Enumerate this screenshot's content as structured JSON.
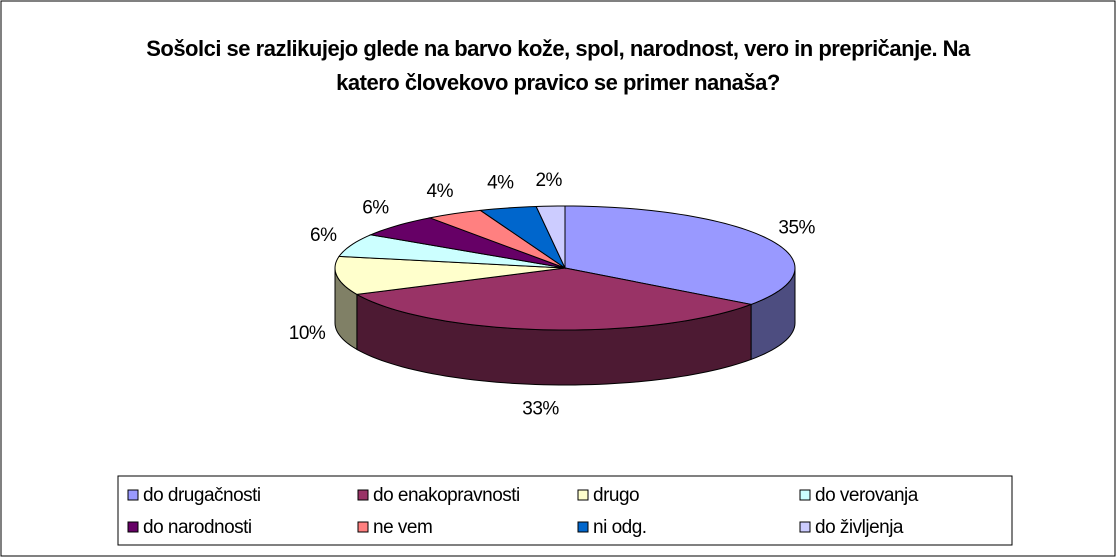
{
  "chart_data": {
    "type": "pie",
    "title": "Sošolci se razlikujejo glede na barvo kože, spol, narodnost, vero in prepričanje. Na katero človekovo pravico se primer nanaša?",
    "categories": [
      "do drugačnosti",
      "do enakopravnosti",
      "drugo",
      "do verovanja",
      "do narodnosti",
      "ne vem",
      "ni odg.",
      "do življenja"
    ],
    "values": [
      35,
      33,
      10,
      6,
      6,
      4,
      4,
      2
    ],
    "value_labels": [
      "35%",
      "33%",
      "10%",
      "6%",
      "6%",
      "4%",
      "4%",
      "2%"
    ],
    "colors": [
      "#9999ff",
      "#993366",
      "#ffffcc",
      "#ccffff",
      "#660066",
      "#ff8080",
      "#0066cc",
      "#ccccff"
    ]
  }
}
